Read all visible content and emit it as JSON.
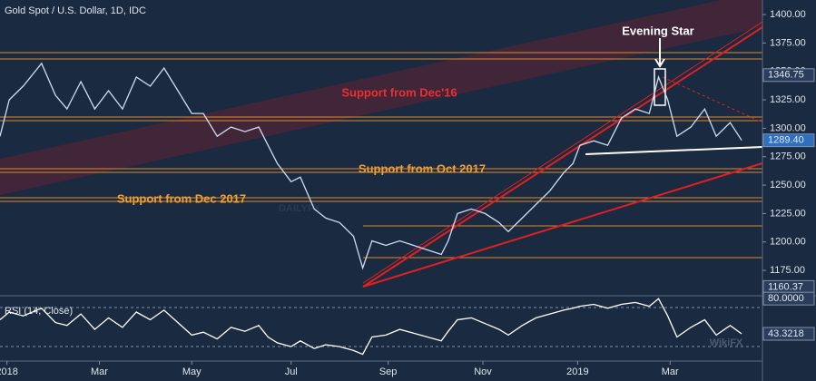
{
  "chart_data": [
    {
      "type": "line",
      "title": "Gold Spot / U.S. Dollar, 1D, IDC",
      "x": [
        0,
        4,
        10,
        18,
        24,
        29,
        35,
        41,
        47,
        53,
        59,
        65,
        71,
        77,
        83,
        88,
        94,
        100,
        106,
        112,
        116,
        120,
        126,
        130,
        136,
        141,
        147,
        153,
        157,
        161,
        167,
        173,
        179,
        185,
        191,
        194,
        198,
        204,
        210,
        216,
        220,
        226,
        232,
        238,
        244,
        248,
        251,
        257,
        263,
        269,
        275,
        281,
        285,
        289,
        293,
        299,
        305,
        310,
        316,
        321
      ],
      "series": [
        {
          "color": "#cfdcf2",
          "values": [
            1293,
            1325,
            1337,
            1357,
            1329,
            1317,
            1341,
            1317,
            1333,
            1317,
            1345,
            1337,
            1353,
            1333,
            1313,
            1313,
            1293,
            1301,
            1297,
            1301,
            1285,
            1269,
            1253,
            1257,
            1229,
            1221,
            1217,
            1205,
            1177,
            1201,
            1197,
            1201,
            1197,
            1193,
            1189,
            1201,
            1225,
            1229,
            1225,
            1217,
            1209,
            1221,
            1233,
            1245,
            1261,
            1269,
            1285,
            1289,
            1285,
            1309,
            1317,
            1313,
            1345,
            1325,
            1293,
            1301,
            1317,
            1293,
            1305,
            1289.4
          ]
        }
      ],
      "xlim": [
        0,
        330
      ],
      "ylim": [
        1153.5,
        1412.8
      ],
      "yticks": [
        {
          "value": 1175,
          "label": "1175.00"
        },
        {
          "value": 1200,
          "label": "1200.00"
        },
        {
          "value": 1225,
          "label": "1225.00"
        },
        {
          "value": 1250,
          "label": "1250.00"
        },
        {
          "value": 1275,
          "label": "1275.00"
        },
        {
          "value": 1300,
          "label": "1300.00"
        },
        {
          "value": 1325,
          "label": "1325.00"
        },
        {
          "value": 1350,
          "label": "1350.00"
        },
        {
          "value": 1375,
          "label": "1375.00"
        },
        {
          "value": 1400,
          "label": "1400.00"
        }
      ],
      "markers": [
        1346.75,
        {
          "value": 1289.4,
          "label": "1289.40"
        },
        1160.37
      ],
      "annotations": [
        "Support from Dec'16",
        "Support from Oct 2017",
        "Support from Dec 2017",
        "Evening Star"
      ],
      "watermark": "DAILYFX"
    },
    {
      "type": "line",
      "title": "RSI (14, Close)",
      "x": [
        0,
        4,
        10,
        18,
        24,
        29,
        35,
        41,
        47,
        53,
        59,
        65,
        71,
        77,
        83,
        88,
        94,
        100,
        106,
        112,
        116,
        120,
        126,
        130,
        136,
        141,
        147,
        153,
        157,
        161,
        167,
        173,
        179,
        185,
        191,
        194,
        198,
        204,
        210,
        216,
        220,
        226,
        232,
        238,
        244,
        248,
        251,
        257,
        263,
        269,
        275,
        281,
        285,
        289,
        293,
        299,
        305,
        310,
        316,
        321
      ],
      "series": [
        {
          "color": "#ffffff",
          "values": [
            58,
            66,
            62,
            70,
            55,
            52,
            64,
            48,
            60,
            50,
            66,
            58,
            68,
            55,
            42,
            45,
            38,
            50,
            46,
            52,
            40,
            34,
            30,
            36,
            28,
            32,
            30,
            26,
            22,
            40,
            42,
            48,
            44,
            40,
            36,
            46,
            58,
            60,
            54,
            48,
            42,
            52,
            60,
            64,
            68,
            70,
            72,
            74,
            70,
            74,
            76,
            72,
            80,
            62,
            40,
            50,
            58,
            42,
            52,
            43.3218
          ]
        }
      ],
      "xlim": [
        0,
        330
      ],
      "ylim": [
        15,
        83
      ],
      "markers": [
        {
          "value": 80,
          "label": "80.0000"
        },
        43.3218
      ],
      "xticks": [
        {
          "value": 3,
          "label": "2018"
        },
        {
          "value": 43,
          "label": "Mar"
        },
        {
          "value": 83,
          "label": "May"
        },
        {
          "value": 126,
          "label": "Jul"
        },
        {
          "value": 168,
          "label": "Sep"
        },
        {
          "value": 209,
          "label": "Nov"
        },
        {
          "value": 250,
          "label": "2019"
        },
        {
          "value": 290,
          "label": "Mar"
        }
      ],
      "watermark": "WikiFX"
    }
  ]
}
